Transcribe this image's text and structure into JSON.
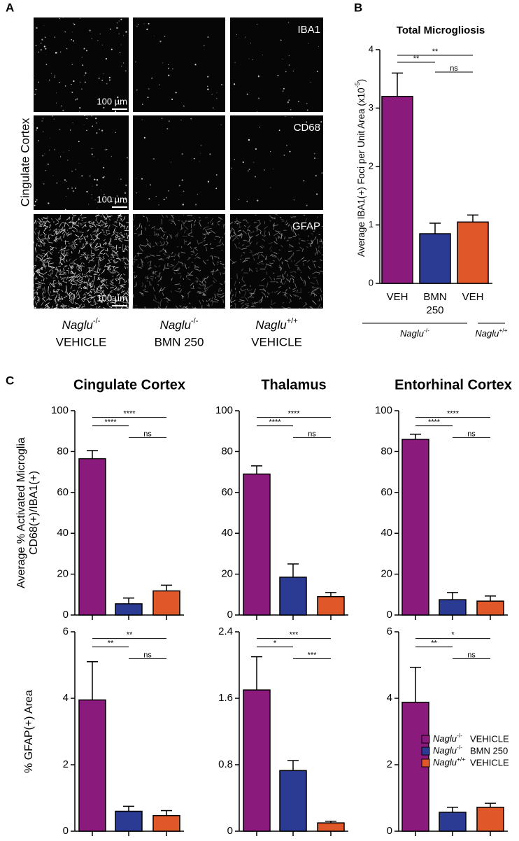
{
  "panel_labels": [
    "A",
    "B",
    "C"
  ],
  "panel_a": {
    "row_label": "Cingulate Cortex",
    "stains": [
      "IBA1",
      "CD68",
      "GFAP"
    ],
    "scale_bar": "100 µm",
    "columns": [
      {
        "gene": "Naglu",
        "genotype": "-/-",
        "treatment": "VEHICLE"
      },
      {
        "gene": "Naglu",
        "genotype": "-/-",
        "treatment": "BMN 250"
      },
      {
        "gene": "Naglu",
        "genotype": "+/+",
        "treatment": "VEHICLE"
      }
    ]
  },
  "chart_data": [
    {
      "type": "bar",
      "title": "Total Microgliosis",
      "ylabel": "Average IBA1(+) Foci per Unit Area (x10",
      "ylabel_sup": "-5",
      "ylabel_end": ")",
      "categories": [
        "VEH",
        "BMN 250",
        "VEH"
      ],
      "values": [
        3.2,
        0.85,
        1.05
      ],
      "errors": [
        0.4,
        0.18,
        0.12
      ],
      "colors": [
        "#8b1a7d",
        "#2b3a93",
        "#e0582a"
      ],
      "ylim": [
        0,
        4
      ],
      "yticks": [
        0,
        1,
        2,
        3,
        4
      ],
      "significance": [
        "**",
        "**",
        "ns"
      ],
      "groups": [
        {
          "gene": "Naglu",
          "genotype": "-/-"
        },
        {
          "gene": "Naglu",
          "genotype": "+/+"
        }
      ]
    },
    {
      "type": "bar",
      "title": "Cingulate Cortex",
      "ylabel": [
        "Average % Activated Microglia",
        "CD68(+)/IBA1(+)"
      ],
      "categories": [
        null,
        null,
        null
      ],
      "values": [
        76.5,
        5.5,
        11.8
      ],
      "errors": [
        4,
        2.8,
        2.8
      ],
      "colors": [
        "#8b1a7d",
        "#2b3a93",
        "#e0582a"
      ],
      "ylim": [
        0,
        100
      ],
      "yticks": [
        0,
        20,
        40,
        60,
        80,
        100
      ],
      "significance": [
        "****",
        "****",
        "ns"
      ]
    },
    {
      "type": "bar",
      "title": "Thalamus",
      "categories": [
        null,
        null,
        null
      ],
      "values": [
        69,
        18.5,
        9
      ],
      "errors": [
        4,
        6.5,
        2
      ],
      "colors": [
        "#8b1a7d",
        "#2b3a93",
        "#e0582a"
      ],
      "ylim": [
        0,
        100
      ],
      "yticks": [
        0,
        20,
        40,
        60,
        80,
        100
      ],
      "significance": [
        "****",
        "****",
        "ns"
      ]
    },
    {
      "type": "bar",
      "title": "Entorhinal Cortex",
      "categories": [
        null,
        null,
        null
      ],
      "values": [
        86,
        7.5,
        6.8
      ],
      "errors": [
        2.5,
        3.5,
        2.5
      ],
      "colors": [
        "#8b1a7d",
        "#2b3a93",
        "#e0582a"
      ],
      "ylim": [
        0,
        100
      ],
      "yticks": [
        0,
        20,
        40,
        60,
        80,
        100
      ],
      "significance": [
        "****",
        "****",
        "ns"
      ]
    },
    {
      "type": "bar",
      "ylabel": [
        "% GFAP(+) Area"
      ],
      "categories": [
        null,
        null,
        null
      ],
      "values": [
        3.95,
        0.6,
        0.47
      ],
      "errors": [
        1.15,
        0.15,
        0.15
      ],
      "colors": [
        "#8b1a7d",
        "#2b3a93",
        "#e0582a"
      ],
      "ylim": [
        0,
        6
      ],
      "yticks": [
        0,
        2,
        4,
        6
      ],
      "significance": [
        "**",
        "**",
        "ns"
      ]
    },
    {
      "type": "bar",
      "categories": [
        null,
        null,
        null
      ],
      "values": [
        1.7,
        0.73,
        0.1
      ],
      "errors": [
        0.4,
        0.12,
        0.02
      ],
      "colors": [
        "#8b1a7d",
        "#2b3a93",
        "#e0582a"
      ],
      "ylim": [
        0,
        2.4
      ],
      "yticks": [
        0,
        0.8,
        1.6,
        2.4
      ],
      "significance": [
        "*",
        "***",
        "***"
      ]
    },
    {
      "type": "bar",
      "categories": [
        null,
        null,
        null
      ],
      "values": [
        3.88,
        0.57,
        0.72
      ],
      "errors": [
        1.05,
        0.15,
        0.12
      ],
      "colors": [
        "#8b1a7d",
        "#2b3a93",
        "#e0582a"
      ],
      "ylim": [
        0,
        6
      ],
      "yticks": [
        0,
        2,
        4,
        6
      ],
      "significance": [
        "**",
        "*",
        "ns"
      ],
      "legend": [
        {
          "gene": "Naglu",
          "genotype": "-/-",
          "treatment": "VEHICLE",
          "color": "#8b1a7d"
        },
        {
          "gene": "Naglu",
          "genotype": "-/-",
          "treatment": "BMN 250",
          "color": "#2b3a93"
        },
        {
          "gene": "Naglu",
          "genotype": "+/+",
          "treatment": "VEHICLE",
          "color": "#e0582a"
        }
      ]
    }
  ]
}
